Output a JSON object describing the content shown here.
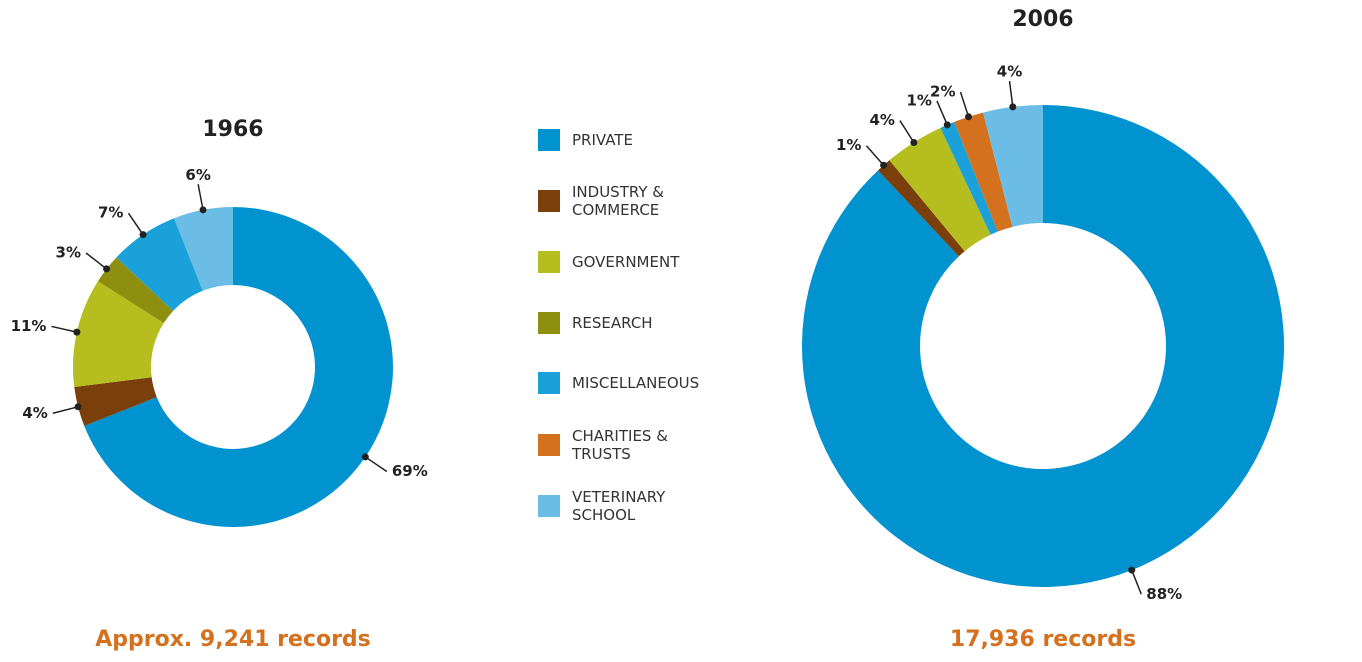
{
  "chart_data": [
    {
      "type": "donut",
      "title": "1966",
      "caption": "Approx. 9,241 records",
      "categories": [
        "PRIVATE",
        "INDUSTRY & COMMERCE",
        "GOVERNMENT",
        "RESEARCH",
        "MISCELLANEOUS",
        "CHARITIES & TRUSTS",
        "VETERINARY SCHOOL"
      ],
      "colors": [
        "#0093d0",
        "#7a3f0a",
        "#b5bd1f",
        "#8f8f0f",
        "#1aa1d9",
        "#d4711f",
        "#6cbde6"
      ],
      "values": [
        69,
        4,
        11,
        3,
        7,
        null,
        6
      ],
      "value_labels": [
        "69%",
        "4%",
        "11%",
        "3%",
        "7%",
        null,
        "6%"
      ],
      "legend": true
    },
    {
      "type": "donut",
      "title": "2006",
      "caption": "17,936 records",
      "categories": [
        "PRIVATE",
        "INDUSTRY & COMMERCE",
        "GOVERNMENT",
        "RESEARCH",
        "MISCELLANEOUS",
        "CHARITIES & TRUSTS",
        "VETERINARY SCHOOL"
      ],
      "colors": [
        "#0093d0",
        "#7a3f0a",
        "#b5bd1f",
        "#8f8f0f",
        "#1aa1d9",
        "#d4711f",
        "#6cbde6"
      ],
      "values": [
        88,
        1,
        4,
        null,
        1,
        2,
        4
      ],
      "value_labels": [
        "88%",
        "1%",
        "4%",
        null,
        "1%",
        "2%",
        "4%"
      ],
      "legend": false
    }
  ]
}
